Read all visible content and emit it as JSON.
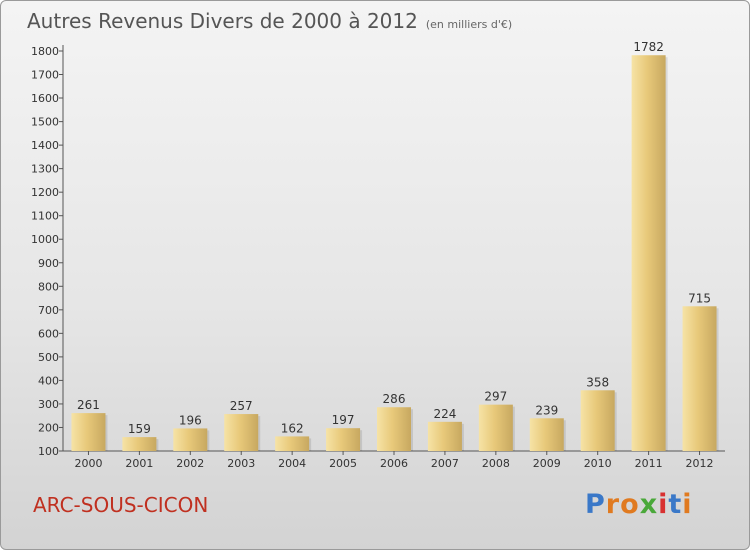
{
  "chart_data": {
    "type": "bar",
    "title": "Autres Revenus Divers de 2000 à 2012",
    "subtitle": "(en milliers d'€)",
    "categories": [
      "2000",
      "2001",
      "2002",
      "2003",
      "2004",
      "2005",
      "2006",
      "2007",
      "2008",
      "2009",
      "2010",
      "2011",
      "2012"
    ],
    "values": [
      261,
      159,
      196,
      257,
      162,
      197,
      286,
      224,
      297,
      239,
      358,
      1782,
      715
    ],
    "ylim": [
      100,
      1800
    ],
    "yticks": [
      100,
      200,
      300,
      400,
      500,
      600,
      700,
      800,
      900,
      1000,
      1100,
      1200,
      1300,
      1400,
      1500,
      1600,
      1700,
      1800
    ],
    "xlabel": "",
    "ylabel": "",
    "grid": false,
    "bar_color": "#e8c97a"
  },
  "footer": {
    "commune": "ARC-SOUS-CICON",
    "commune_color": "#c03020",
    "logo_text": "Proxiti",
    "logo_colors": [
      "#3a78c8",
      "#e07a20",
      "#e07a20",
      "#4aa83a",
      "#d83030",
      "#3a78c8",
      "#e07a20"
    ]
  }
}
